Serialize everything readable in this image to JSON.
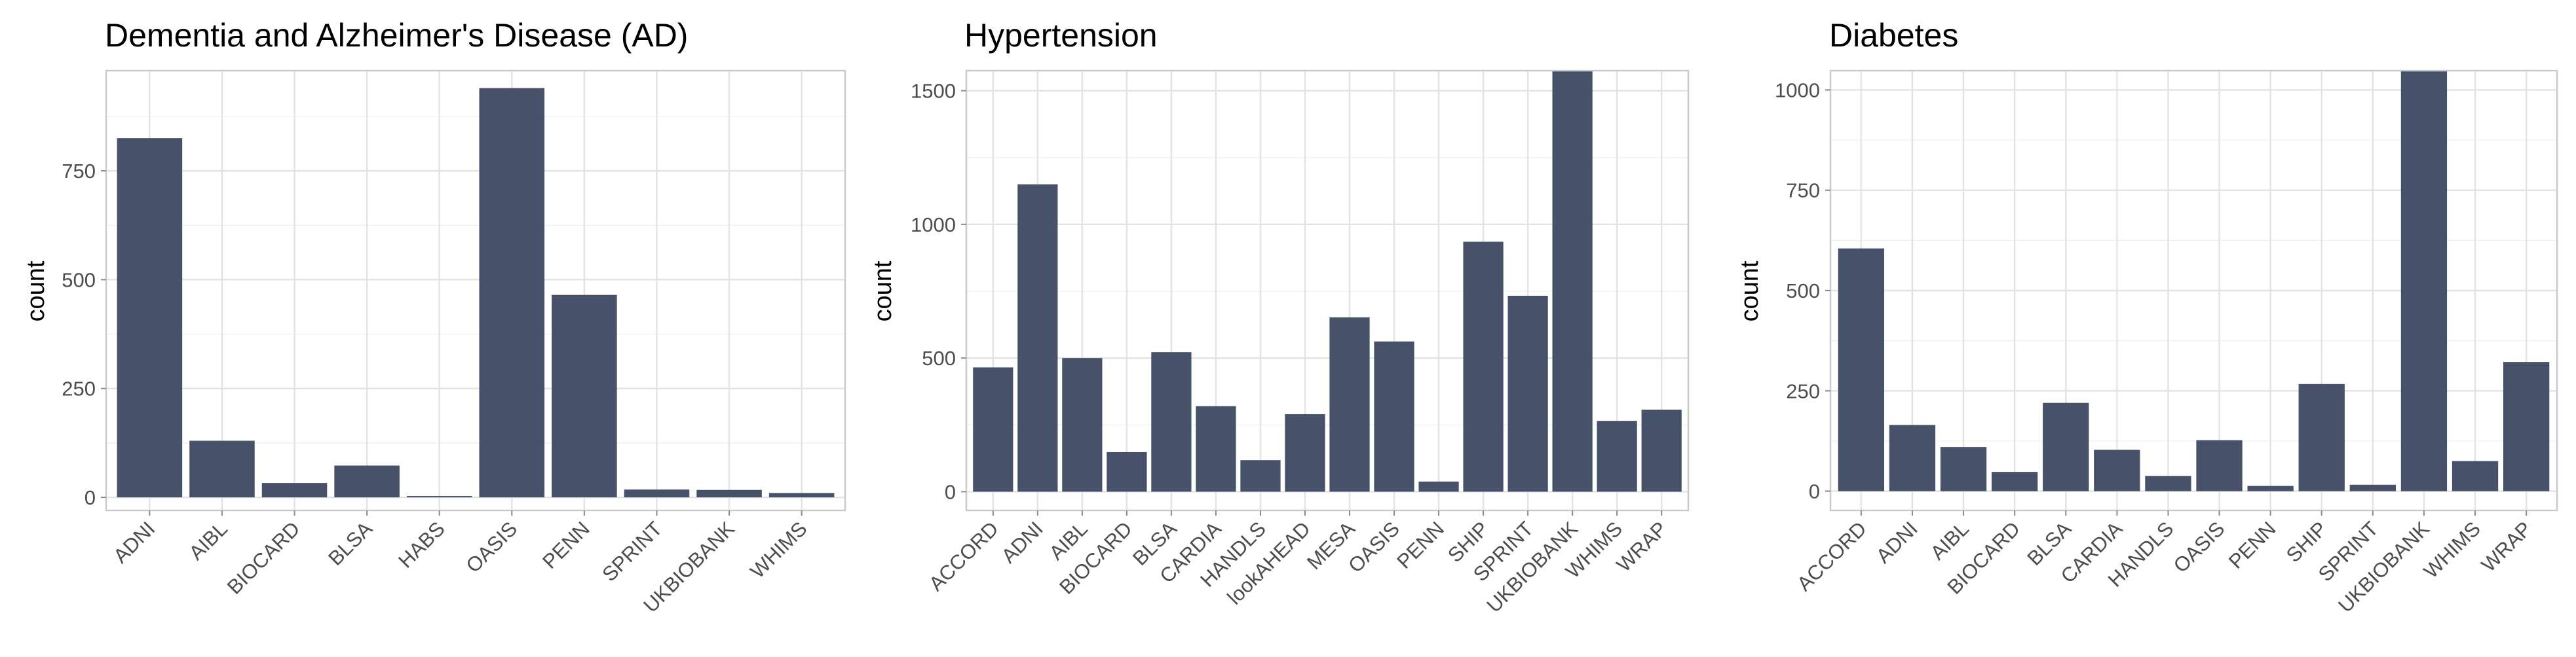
{
  "chart_data": [
    {
      "type": "bar",
      "title": "Dementia and Alzheimer's Disease (AD)",
      "xlabel": "",
      "ylabel": "count",
      "ylim": [
        -30,
        980
      ],
      "yticks": [
        0,
        250,
        500,
        750
      ],
      "grid": true,
      "bar_color": "#475169",
      "categories": [
        "ADNI",
        "AIBL",
        "BIOCARD",
        "BLSA",
        "HABS",
        "OASIS",
        "PENN",
        "SPRINT",
        "UKBIOBANK",
        "WHIMS"
      ],
      "values": [
        825,
        130,
        33,
        73,
        3,
        940,
        465,
        18,
        17,
        10
      ]
    },
    {
      "type": "bar",
      "title": "Hypertension",
      "xlabel": "",
      "ylabel": "count",
      "ylim": [
        -70,
        1575
      ],
      "yticks": [
        0,
        500,
        1000,
        1500
      ],
      "grid": true,
      "bar_color": "#475169",
      "categories": [
        "ACCORD",
        "ADNI",
        "AIBL",
        "BIOCARD",
        "BLSA",
        "CARDIA",
        "HANDLS",
        "lookAHEAD",
        "MESA",
        "OASIS",
        "PENN",
        "SHIP",
        "SPRINT",
        "UKBIOBANK",
        "WHIMS",
        "WRAP"
      ],
      "values": [
        465,
        1150,
        500,
        148,
        522,
        320,
        118,
        290,
        652,
        562,
        38,
        935,
        733,
        1575,
        265,
        307
      ]
    },
    {
      "type": "bar",
      "title": "Diabetes",
      "xlabel": "",
      "ylabel": "count",
      "ylim": [
        -48,
        1048
      ],
      "yticks": [
        0,
        250,
        500,
        750,
        1000
      ],
      "grid": true,
      "bar_color": "#475169",
      "categories": [
        "ACCORD",
        "ADNI",
        "AIBL",
        "BIOCARD",
        "BLSA",
        "CARDIA",
        "HANDLS",
        "OASIS",
        "PENN",
        "SHIP",
        "SPRINT",
        "UKBIOBANK",
        "WHIMS",
        "WRAP"
      ],
      "values": [
        605,
        165,
        110,
        48,
        220,
        103,
        38,
        127,
        13,
        267,
        16,
        1048,
        75,
        322
      ]
    }
  ]
}
